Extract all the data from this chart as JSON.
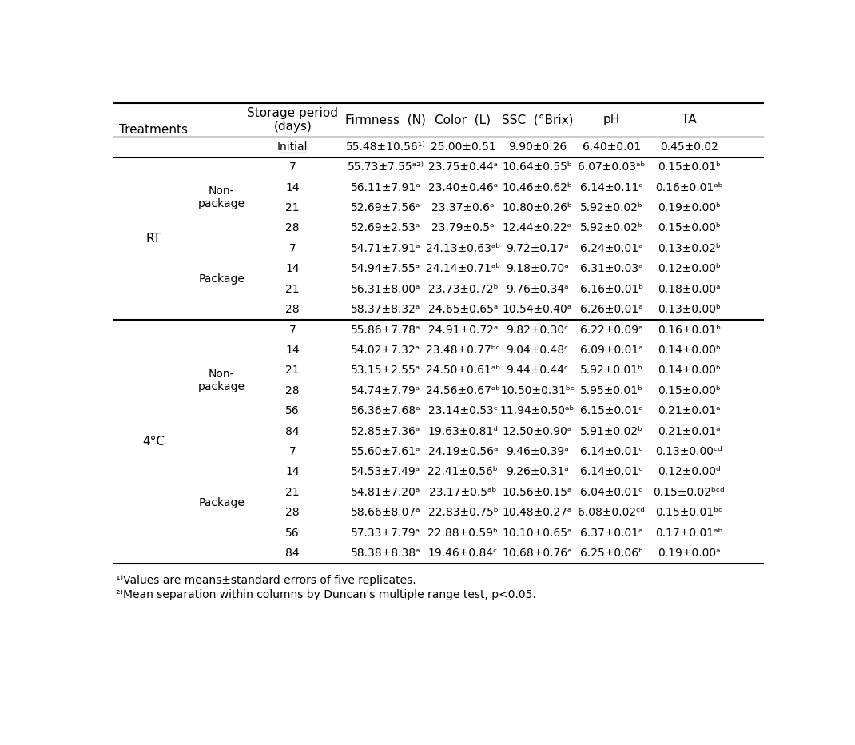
{
  "headers": [
    "Treatments",
    "Storage period\n(days)",
    "Firmness (N)",
    "Color (L)",
    "SSC (°Brix)",
    "pH",
    "TA"
  ],
  "initial_row": [
    "",
    "Initial",
    "55.48±10.56¹⁾",
    "25.00±0.51",
    "9.90±0.26",
    "6.40±0.01",
    "0.45±0.02"
  ],
  "sections": [
    {
      "treatment": "RT",
      "sub_sections": [
        {
          "package": "Non-\npackage",
          "rows": [
            [
              "7",
              "55.73±7.55ᵃ²⁾",
              "23.75±0.44ᵃ",
              "10.64±0.55ᵇ",
              "6.07±0.03ᵃᵇ",
              "0.15±0.01ᵇ"
            ],
            [
              "14",
              "56.11±7.91ᵃ",
              "23.40±0.46ᵃ",
              "10.46±0.62ᵇ",
              "6.14±0.11ᵃ",
              "0.16±0.01ᵃᵇ"
            ],
            [
              "21",
              "52.69±7.56ᵃ",
              "23.37±0.6ᵃ",
              "10.80±0.26ᵇ",
              "5.92±0.02ᵇ",
              "0.19±0.00ᵇ"
            ],
            [
              "28",
              "52.69±2.53ᵃ",
              "23.79±0.5ᵃ",
              "12.44±0.22ᵃ",
              "5.92±0.02ᵇ",
              "0.15±0.00ᵇ"
            ]
          ]
        },
        {
          "package": "Package",
          "rows": [
            [
              "7",
              "54.71±7.91ᵃ",
              "24.13±0.63ᵃᵇ",
              "9.72±0.17ᵃ",
              "6.24±0.01ᵃ",
              "0.13±0.02ᵇ"
            ],
            [
              "14",
              "54.94±7.55ᵃ",
              "24.14±0.71ᵃᵇ",
              "9.18±0.70ᵃ",
              "6.31±0.03ᵃ",
              "0.12±0.00ᵇ"
            ],
            [
              "21",
              "56.31±8.00ᵃ",
              "23.73±0.72ᵇ",
              "9.76±0.34ᵃ",
              "6.16±0.01ᵇ",
              "0.18±0.00ᵃ"
            ],
            [
              "28",
              "58.37±8.32ᵃ",
              "24.65±0.65ᵃ",
              "10.54±0.40ᵃ",
              "6.26±0.01ᵃ",
              "0.13±0.00ᵇ"
            ]
          ]
        }
      ]
    },
    {
      "treatment": "4°C",
      "sub_sections": [
        {
          "package": "Non-\npackage",
          "rows": [
            [
              "7",
              "55.86±7.78ᵃ",
              "24.91±0.72ᵃ",
              "9.82±0.30ᶜ",
              "6.22±0.09ᵃ",
              "0.16±0.01ᵇ"
            ],
            [
              "14",
              "54.02±7.32ᵃ",
              "23.48±0.77ᵇᶜ",
              "9.04±0.48ᶜ",
              "6.09±0.01ᵃ",
              "0.14±0.00ᵇ"
            ],
            [
              "21",
              "53.15±2.55ᵃ",
              "24.50±0.61ᵃᵇ",
              "9.44±0.44ᶜ",
              "5.92±0.01ᵇ",
              "0.14±0.00ᵇ"
            ],
            [
              "28",
              "54.74±7.79ᵃ",
              "24.56±0.67ᵃᵇ",
              "10.50±0.31ᵇᶜ",
              "5.95±0.01ᵇ",
              "0.15±0.00ᵇ"
            ],
            [
              "56",
              "56.36±7.68ᵃ",
              "23.14±0.53ᶜ",
              "11.94±0.50ᵃᵇ",
              "6.15±0.01ᵃ",
              "0.21±0.01ᵃ"
            ],
            [
              "84",
              "52.85±7.36ᵃ",
              "19.63±0.81ᵈ",
              "12.50±0.90ᵃ",
              "5.91±0.02ᵇ",
              "0.21±0.01ᵃ"
            ]
          ]
        },
        {
          "package": "Package",
          "rows": [
            [
              "7",
              "55.60±7.61ᵃ",
              "24.19±0.56ᵃ",
              "9.46±0.39ᵃ",
              "6.14±0.01ᶜ",
              "0.13±0.00ᶜᵈ"
            ],
            [
              "14",
              "54.53±7.49ᵃ",
              "22.41±0.56ᵇ",
              "9.26±0.31ᵃ",
              "6.14±0.01ᶜ",
              "0.12±0.00ᵈ"
            ],
            [
              "21",
              "54.81±7.20ᵃ",
              "23.17±0.5ᵃᵇ",
              "10.56±0.15ᵃ",
              "6.04±0.01ᵈ",
              "0.15±0.02ᵇᶜᵈ"
            ],
            [
              "28",
              "58.66±8.07ᵃ",
              "22.83±0.75ᵇ",
              "10.48±0.27ᵃ",
              "6.08±0.02ᶜᵈ",
              "0.15±0.01ᵇᶜ"
            ],
            [
              "56",
              "57.33±7.79ᵃ",
              "22.88±0.59ᵇ",
              "10.10±0.65ᵃ",
              "6.37±0.01ᵃ",
              "0.17±0.01ᵃᵇ"
            ],
            [
              "84",
              "58.38±8.38ᵃ",
              "19.46±0.84ᶜ",
              "10.68±0.76ᵃ",
              "6.25±0.06ᵇ",
              "0.19±0.00ᵃ"
            ]
          ]
        }
      ]
    }
  ],
  "footnotes": [
    "¹⁾Values are means±standard errors of five replicates.",
    "²⁾Mean separation within columns by Duncan's multiple range test, p<0.05."
  ],
  "bg_color": "#ffffff",
  "text_color": "#000000",
  "line_color": "#000000"
}
